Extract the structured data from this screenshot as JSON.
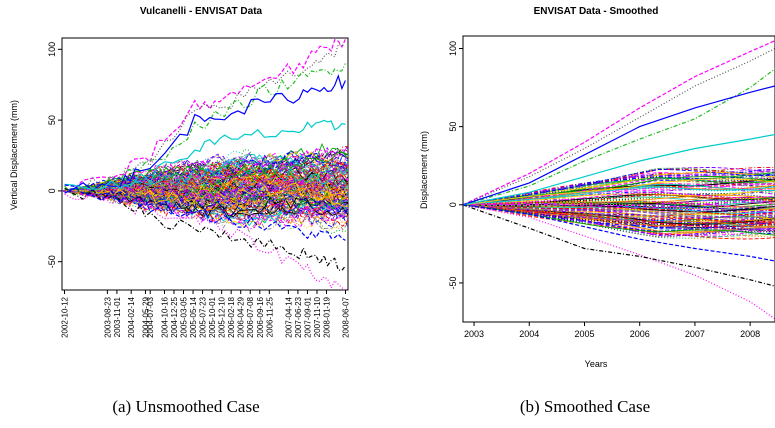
{
  "chart_data": [
    {
      "type": "line",
      "title": "Vulcanelli - ENVISAT Data",
      "xlabel": "",
      "ylabel": "Vertical Displacement (mm)",
      "x_scale": "time",
      "xlim": [
        "2002-10-12",
        "2008-06-07"
      ],
      "ylim": [
        -70,
        108
      ],
      "yticks": [
        -50,
        0,
        50,
        100
      ],
      "xticks": [
        "2002-10-12",
        "2003-08-23",
        "2003-11-01",
        "2004-02-14",
        "2004-05-29",
        "2004-07-03",
        "2004-10-16",
        "2004-12-25",
        "2005-03-05",
        "2005-05-14",
        "2005-07-23",
        "2005-10-01",
        "2005-12-10",
        "2006-02-18",
        "2006-04-29",
        "2006-07-08",
        "2006-09-16",
        "2006-11-25",
        "2007-04-14",
        "2007-06-23",
        "2007-09-01",
        "2007-11-10",
        "2008-01-19",
        "2008-06-07"
      ],
      "series_count_note": "",
      "highlight_series": [
        {
          "color": "#ff00ff",
          "style": "dashed",
          "values": [
            [
              2002.78,
              0
            ],
            [
              2003.9,
              12
            ],
            [
              2004.5,
              25
            ],
            [
              2005.4,
              60
            ],
            [
              2006.0,
              65
            ],
            [
              2006.8,
              80
            ],
            [
              2007.5,
              88
            ],
            [
              2008.0,
              100
            ],
            [
              2008.43,
              107
            ]
          ]
        },
        {
          "color": "#555555",
          "style": "dotted",
          "values": [
            [
              2002.78,
              0
            ],
            [
              2003.9,
              10
            ],
            [
              2004.5,
              20
            ],
            [
              2005.4,
              55
            ],
            [
              2006.0,
              60
            ],
            [
              2006.8,
              75
            ],
            [
              2007.5,
              85
            ],
            [
              2008.0,
              95
            ],
            [
              2008.43,
              103
            ]
          ]
        },
        {
          "color": "#22bb22",
          "style": "dashdot",
          "values": [
            [
              2002.78,
              0
            ],
            [
              2003.9,
              8
            ],
            [
              2004.5,
              18
            ],
            [
              2005.4,
              45
            ],
            [
              2006.0,
              55
            ],
            [
              2006.8,
              70
            ],
            [
              2007.5,
              78
            ],
            [
              2008.0,
              85
            ],
            [
              2008.43,
              90
            ]
          ]
        },
        {
          "color": "#0000ff",
          "style": "solid",
          "values": [
            [
              2002.78,
              0
            ],
            [
              2003.9,
              8
            ],
            [
              2004.5,
              15
            ],
            [
              2005.4,
              50
            ],
            [
              2006.0,
              55
            ],
            [
              2006.8,
              62
            ],
            [
              2007.5,
              68
            ],
            [
              2008.0,
              74
            ],
            [
              2008.43,
              78
            ]
          ]
        },
        {
          "color": "#00cccc",
          "style": "solid",
          "values": [
            [
              2002.78,
              0
            ],
            [
              2003.9,
              5
            ],
            [
              2004.5,
              10
            ],
            [
              2005.4,
              30
            ],
            [
              2006.0,
              35
            ],
            [
              2006.8,
              40
            ],
            [
              2007.5,
              43
            ],
            [
              2008.0,
              45
            ],
            [
              2008.43,
              47
            ]
          ]
        },
        {
          "color": "#ff00ff",
          "style": "dotted",
          "values": [
            [
              2002.78,
              0
            ],
            [
              2003.9,
              -8
            ],
            [
              2004.5,
              -15
            ],
            [
              2005.4,
              -20
            ],
            [
              2006.0,
              -28
            ],
            [
              2006.8,
              -40
            ],
            [
              2007.5,
              -52
            ],
            [
              2008.0,
              -62
            ],
            [
              2008.43,
              -70
            ]
          ]
        },
        {
          "color": "#000000",
          "style": "dashdot",
          "values": [
            [
              2002.78,
              0
            ],
            [
              2003.9,
              -5
            ],
            [
              2004.5,
              -20
            ],
            [
              2005.4,
              -25
            ],
            [
              2006.0,
              -30
            ],
            [
              2006.8,
              -38
            ],
            [
              2007.5,
              -43
            ],
            [
              2008.0,
              -48
            ],
            [
              2008.43,
              -53
            ]
          ]
        },
        {
          "color": "#0000ff",
          "style": "dashed",
          "values": [
            [
              2002.78,
              0
            ],
            [
              2003.9,
              -4
            ],
            [
              2004.5,
              -10
            ],
            [
              2005.4,
              -15
            ],
            [
              2006.0,
              -20
            ],
            [
              2006.8,
              -25
            ],
            [
              2007.5,
              -28
            ],
            [
              2008.0,
              -32
            ],
            [
              2008.43,
              -35
            ]
          ]
        }
      ],
      "band": {
        "lower": -20,
        "upper": 22,
        "description": "dense bundle of many multicolored series"
      }
    },
    {
      "type": "line",
      "title": "ENVISAT Data - Smoothed",
      "xlabel": "Years",
      "ylabel": "Displacement (mm)",
      "xlim": [
        2002.8,
        2008.45
      ],
      "ylim": [
        -75,
        108
      ],
      "xticks": [
        "2003",
        "2004",
        "2005",
        "2006",
        "2007",
        "2008"
      ],
      "yticks": [
        -50,
        0,
        50,
        100
      ],
      "highlight_series": [
        {
          "color": "#ff00ff",
          "style": "dashed",
          "values": [
            [
              2002.8,
              0
            ],
            [
              2004,
              20
            ],
            [
              2005,
              40
            ],
            [
              2006,
              62
            ],
            [
              2007,
              82
            ],
            [
              2008,
              98
            ],
            [
              2008.45,
              105
            ]
          ]
        },
        {
          "color": "#555555",
          "style": "dotted",
          "values": [
            [
              2002.8,
              0
            ],
            [
              2004,
              18
            ],
            [
              2005,
              36
            ],
            [
              2006,
              56
            ],
            [
              2007,
              76
            ],
            [
              2008,
              92
            ],
            [
              2008.45,
              100
            ]
          ]
        },
        {
          "color": "#22bb22",
          "style": "dashdot",
          "values": [
            [
              2002.8,
              0
            ],
            [
              2004,
              12
            ],
            [
              2005,
              28
            ],
            [
              2006,
              42
            ],
            [
              2007,
              55
            ],
            [
              2008,
              75
            ],
            [
              2008.45,
              87
            ]
          ]
        },
        {
          "color": "#0000ff",
          "style": "solid",
          "values": [
            [
              2002.8,
              0
            ],
            [
              2004,
              14
            ],
            [
              2005,
              32
            ],
            [
              2006,
              50
            ],
            [
              2007,
              62
            ],
            [
              2008,
              72
            ],
            [
              2008.45,
              76
            ]
          ]
        },
        {
          "color": "#00cccc",
          "style": "solid",
          "values": [
            [
              2002.8,
              0
            ],
            [
              2004,
              8
            ],
            [
              2005,
              18
            ],
            [
              2006,
              28
            ],
            [
              2007,
              36
            ],
            [
              2008,
              42
            ],
            [
              2008.45,
              45
            ]
          ]
        },
        {
          "color": "#ff00ff",
          "style": "dotted",
          "values": [
            [
              2002.8,
              0
            ],
            [
              2004,
              -8
            ],
            [
              2005,
              -20
            ],
            [
              2006,
              -32
            ],
            [
              2007,
              -45
            ],
            [
              2008,
              -62
            ],
            [
              2008.45,
              -73
            ]
          ]
        },
        {
          "color": "#000000",
          "style": "dashdot",
          "values": [
            [
              2002.8,
              0
            ],
            [
              2004,
              -15
            ],
            [
              2005,
              -28
            ],
            [
              2006,
              -33
            ],
            [
              2007,
              -40
            ],
            [
              2008,
              -48
            ],
            [
              2008.45,
              -52
            ]
          ]
        },
        {
          "color": "#0000ff",
          "style": "dashed",
          "values": [
            [
              2002.8,
              0
            ],
            [
              2004,
              -6
            ],
            [
              2005,
              -14
            ],
            [
              2006,
              -22
            ],
            [
              2007,
              -28
            ],
            [
              2008,
              -33
            ],
            [
              2008.45,
              -36
            ]
          ]
        }
      ],
      "band": {
        "lower": -20,
        "upper": 22,
        "description": "dense bundle of many multicolored smoothed series"
      }
    }
  ],
  "captions": {
    "a": "(a) Unsmoothed Case",
    "b": "(b) Smoothed Case"
  },
  "palette": [
    "#000000",
    "#ff0000",
    "#00aa00",
    "#0000ff",
    "#00cccc",
    "#ff00ff",
    "#ffcc00",
    "#888888",
    "#ff8800",
    "#8800ff"
  ]
}
